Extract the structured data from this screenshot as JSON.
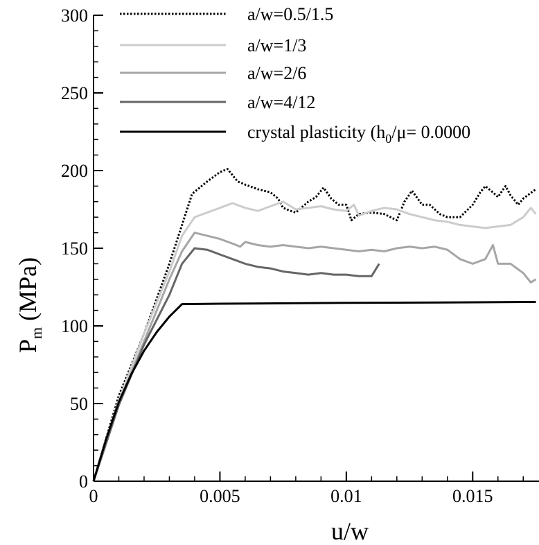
{
  "chart_data": {
    "type": "line",
    "title": "",
    "xlabel": "u/w",
    "ylabel_main": "P",
    "ylabel_sub": "m",
    "ylabel_unit": " (MPa)",
    "xlim": [
      0,
      0.0175
    ],
    "ylim": [
      0,
      300
    ],
    "x_ticks": [
      0,
      0.005,
      0.01,
      0.015
    ],
    "x_tick_labels": [
      "0",
      "0.005",
      "0.01",
      "0.015"
    ],
    "y_ticks": [
      0,
      50,
      100,
      150,
      200,
      250,
      300
    ],
    "y_tick_labels": [
      "0",
      "50",
      "100",
      "150",
      "200",
      "250",
      "300"
    ],
    "grid": false,
    "legend_position": "top-right",
    "series": [
      {
        "name": "a/w=0.5/1.5",
        "color": "#000000",
        "dash": "dotted",
        "x": [
          0,
          0.001,
          0.002,
          0.003,
          0.0039,
          0.0045,
          0.005,
          0.0053,
          0.0057,
          0.006,
          0.0065,
          0.007,
          0.0073,
          0.0075,
          0.0078,
          0.008,
          0.0085,
          0.0088,
          0.0091,
          0.0094,
          0.0097,
          0.01,
          0.0102,
          0.0105,
          0.011,
          0.0115,
          0.012,
          0.0123,
          0.0126,
          0.013,
          0.0133,
          0.0137,
          0.014,
          0.0145,
          0.015,
          0.0153,
          0.0155,
          0.0158,
          0.016,
          0.0163,
          0.0165,
          0.0168,
          0.017,
          0.0175
        ],
        "y": [
          0,
          55,
          95,
          140,
          185,
          193,
          199,
          201,
          193,
          191,
          188,
          186,
          182,
          176,
          174,
          173,
          180,
          183,
          189,
          182,
          178,
          178,
          168,
          172,
          173,
          172,
          168,
          180,
          187,
          178,
          178,
          172,
          170,
          170,
          178,
          186,
          190,
          186,
          183,
          190,
          184,
          178,
          182,
          188
        ]
      },
      {
        "name": "a/w=1/3",
        "color": "#cccccc",
        "dash": "solid",
        "x": [
          0,
          0.001,
          0.002,
          0.003,
          0.0035,
          0.004,
          0.0045,
          0.005,
          0.0055,
          0.006,
          0.0065,
          0.007,
          0.0075,
          0.008,
          0.0085,
          0.009,
          0.0095,
          0.01,
          0.0103,
          0.0105,
          0.011,
          0.0115,
          0.012,
          0.0125,
          0.013,
          0.0135,
          0.014,
          0.0145,
          0.015,
          0.0155,
          0.016,
          0.0165,
          0.017,
          0.0173,
          0.0175
        ],
        "y": [
          0,
          52,
          95,
          135,
          158,
          170,
          173,
          176,
          179,
          176,
          174,
          177,
          180,
          175,
          176,
          177,
          175,
          174,
          178,
          171,
          174,
          176,
          175,
          172,
          170,
          168,
          167,
          165,
          164,
          163,
          164,
          165,
          170,
          176,
          172
        ]
      },
      {
        "name": "a/w=2/6",
        "color": "#a6a6a6",
        "dash": "solid",
        "x": [
          0,
          0.001,
          0.002,
          0.003,
          0.0035,
          0.004,
          0.0045,
          0.005,
          0.0055,
          0.0058,
          0.006,
          0.0065,
          0.007,
          0.0075,
          0.008,
          0.0085,
          0.009,
          0.0095,
          0.01,
          0.0105,
          0.011,
          0.0115,
          0.012,
          0.0125,
          0.013,
          0.0135,
          0.014,
          0.0145,
          0.015,
          0.0155,
          0.0158,
          0.016,
          0.0165,
          0.017,
          0.0173,
          0.0175
        ],
        "y": [
          0,
          50,
          90,
          130,
          148,
          160,
          158,
          156,
          153,
          151,
          154,
          152,
          151,
          152,
          151,
          150,
          151,
          150,
          149,
          148,
          149,
          148,
          150,
          151,
          150,
          151,
          149,
          143,
          140,
          143,
          152,
          140,
          140,
          134,
          128,
          130
        ]
      },
      {
        "name": "a/w=4/12",
        "color": "#666666",
        "dash": "solid",
        "x": [
          0,
          0.001,
          0.002,
          0.003,
          0.0035,
          0.004,
          0.0045,
          0.005,
          0.0055,
          0.006,
          0.0065,
          0.007,
          0.0075,
          0.008,
          0.0085,
          0.009,
          0.0095,
          0.01,
          0.0105,
          0.011,
          0.0113
        ],
        "y": [
          0,
          49,
          88,
          120,
          140,
          150,
          149,
          146,
          143,
          140,
          138,
          137,
          135,
          134,
          133,
          134,
          133,
          133,
          132,
          132,
          140
        ]
      },
      {
        "name": "crystal plasticity (h",
        "name_sub": "0",
        "name_tail": "/μ= 0.0000",
        "color": "#000000",
        "dash": "solid",
        "x": [
          0,
          0.0005,
          0.001,
          0.0015,
          0.002,
          0.0025,
          0.003,
          0.0035,
          0.005,
          0.01,
          0.015,
          0.0175
        ],
        "y": [
          0,
          27,
          51,
          69,
          84,
          96,
          106,
          114,
          114.3,
          114.8,
          115.2,
          115.4
        ]
      }
    ]
  }
}
